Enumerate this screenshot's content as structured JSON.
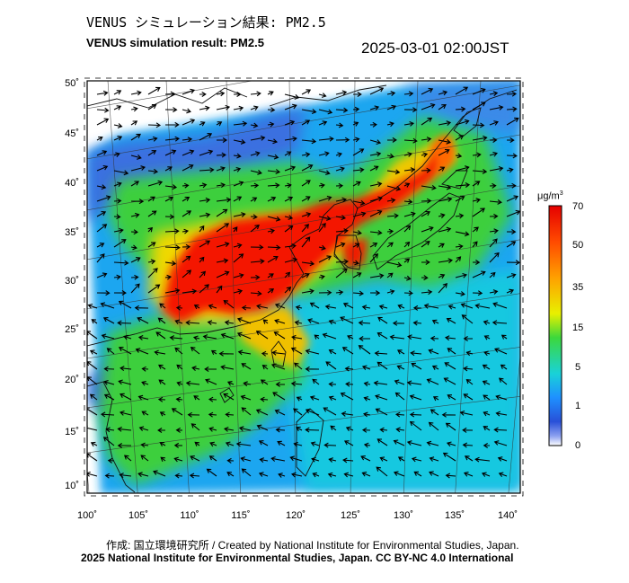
{
  "header": {
    "title_jp": "VENUS シミュレーション結果: PM2.5",
    "title_en": "VENUS simulation result: PM2.5",
    "timestamp": "2025-03-01 02:00JST"
  },
  "map": {
    "lon_ticks": [
      "100˚",
      "105˚",
      "110˚",
      "115˚",
      "120˚",
      "125˚",
      "130˚",
      "135˚",
      "140˚"
    ],
    "lat_ticks": [
      "10˚",
      "15˚",
      "20˚",
      "25˚",
      "30˚",
      "35˚",
      "40˚",
      "45˚",
      "50˚"
    ],
    "lon_range": [
      100,
      141
    ],
    "lat_range": [
      9,
      51
    ],
    "layers": [
      "PM2.5 concentration field",
      "wind vectors",
      "coastlines",
      "graticule"
    ]
  },
  "colorbar": {
    "unit": "μg/m",
    "unit_sup": "3",
    "ticks": [
      "70",
      "50",
      "35",
      "15",
      "5",
      "1",
      "0"
    ],
    "colors": [
      "#ff1a00",
      "#ff8a00",
      "#f7e600",
      "#19d019",
      "#19d2d8",
      "#1e6ef0",
      "#ffffff"
    ]
  },
  "footer": {
    "credit_line1": "作成: 国立環境研究所 / Created by National Institute for Environmental Studies, Japan.",
    "credit_line2": "2025 National Institute for Environmental Studies, Japan. CC BY-NC 4.0 International"
  }
}
